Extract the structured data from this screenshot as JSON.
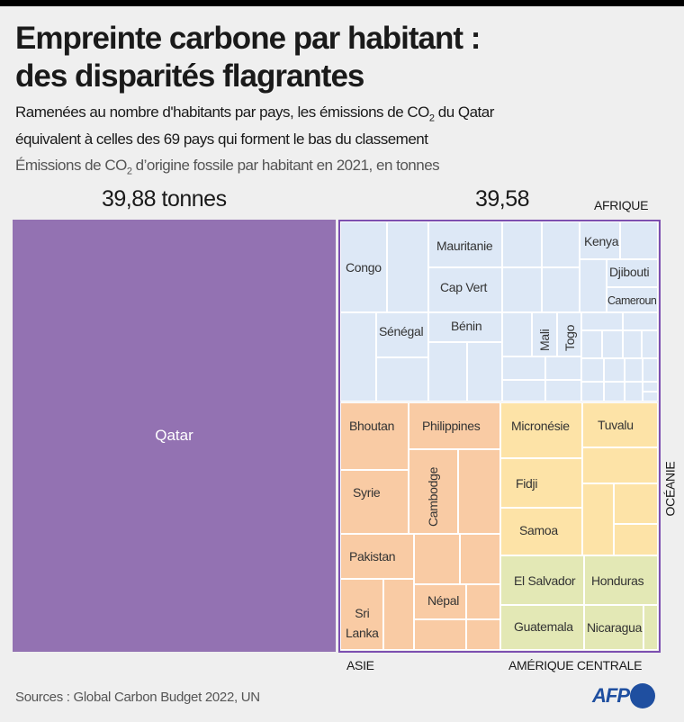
{
  "header": {
    "title_line1": "Empreinte carbone par habitant :",
    "title_line2": "des disparités flagrantes",
    "subtitle_line1_a": "Ramenées au nombre d'habitants par pays, les émissions de CO",
    "subtitle_line1_sub": "2",
    "subtitle_line1_b": " du Qatar",
    "subtitle_line2": "équivalent à celles des 69 pays qui forment le bas du classement",
    "unit_a": "Émissions de CO",
    "unit_sub": "2",
    "unit_b": " d’origine fossile par habitant en 2021, en tonnes"
  },
  "chart_data": {
    "type": "treemap",
    "title": "Empreinte carbone par habitant : des disparités flagrantes",
    "unit": "tonnes CO2 par habitant (2021)",
    "qatar": {
      "name": "Qatar",
      "value": 39.88,
      "value_label": "39,88 tonnes"
    },
    "group": {
      "total": 39.58,
      "value_label": "39,58",
      "country_count": 69
    },
    "regions": {
      "afrique": "AFRIQUE",
      "oceanie": "OCÉANIE",
      "asie": "ASIE",
      "amerique_centrale": "AMÉRIQUE CENTRALE"
    },
    "countries": {
      "congo": "Congo",
      "mauritanie": "Mauritanie",
      "capvert": "Cap Vert",
      "kenya": "Kenya",
      "djibouti": "Djibouti",
      "cameroun": "Cameroun",
      "senegal": "Sénégal",
      "benin": "Bénin",
      "mali": "Mali",
      "togo": "Togo",
      "bhoutan": "Bhoutan",
      "philippines": "Philippines",
      "syrie": "Syrie",
      "cambodge": "Cambodge",
      "pakistan": "Pakistan",
      "srilanka": "Sri\nLanka",
      "nepal": "Népal",
      "micronesie": "Micronésie",
      "fidji": "Fidji",
      "samoa": "Samoa",
      "tuvalu": "Tuvalu",
      "elsalvador": "El Salvador",
      "honduras": "Honduras",
      "guatemala": "Guatemala",
      "nicaragua": "Nicaragua"
    },
    "colors": {
      "qatar": "#9372b2",
      "afrique": "#dde8f6",
      "asie": "#f9cba4",
      "oceanie": "#fde3a7",
      "amerique_centrale": "#e3e8b5",
      "outline": "#7c4fb0"
    }
  },
  "footer": {
    "sources": "Sources : Global Carbon Budget 2022, UN",
    "logo": "AFP"
  }
}
